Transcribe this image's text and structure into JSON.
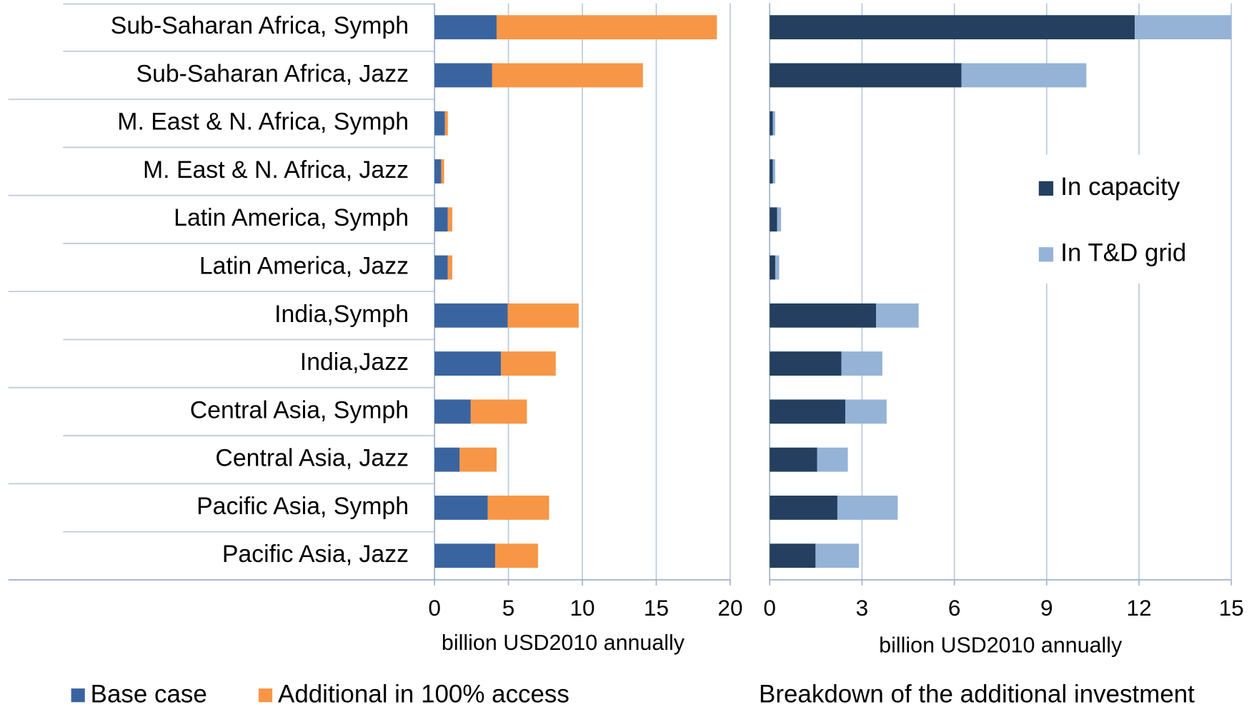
{
  "chart_data": [
    {
      "type": "bar",
      "orientation": "horizontal",
      "stacked": true,
      "categories": [
        "Sub-Saharan Africa, Symph",
        "Sub-Saharan Africa, Jazz",
        "M. East & N. Africa, Symph",
        "M. East & N. Africa, Jazz",
        "Latin America, Symph",
        "Latin America, Jazz",
        "India,Symph",
        "India,Jazz",
        "Central Asia, Symph",
        "Central Asia, Jazz",
        "Pacific Asia, Symph",
        "Pacific Asia, Jazz"
      ],
      "series": [
        {
          "name": "Base case",
          "color": "#3a64a0",
          "values": [
            4.2,
            3.9,
            0.7,
            0.45,
            0.9,
            0.9,
            4.95,
            4.5,
            2.45,
            1.7,
            3.6,
            4.1
          ]
        },
        {
          "name": "Additional in 100% access",
          "color": "#f79646",
          "values": [
            14.9,
            10.2,
            0.2,
            0.2,
            0.3,
            0.3,
            4.8,
            3.7,
            3.8,
            2.5,
            4.15,
            2.9
          ]
        }
      ],
      "xlim": [
        0,
        20
      ],
      "xticks": [
        0,
        5,
        10,
        15,
        20
      ],
      "x_label": "billion USD2010 annually",
      "grid": true,
      "legend": "bottom"
    },
    {
      "type": "bar",
      "orientation": "horizontal",
      "stacked": true,
      "caption": "Breakdown of the additional investment",
      "series": [
        {
          "name": "In capacity",
          "color": "#243f60",
          "values": [
            11.86,
            6.23,
            0.1,
            0.1,
            0.24,
            0.18,
            3.46,
            2.33,
            2.46,
            1.54,
            2.2,
            1.49
          ]
        },
        {
          "name": "In T&D grid",
          "color": "#95b3d7",
          "values": [
            3.14,
            4.06,
            0.08,
            0.08,
            0.13,
            0.13,
            1.38,
            1.33,
            1.34,
            1.0,
            1.96,
            1.41
          ]
        }
      ],
      "xlim": [
        0,
        15
      ],
      "xticks": [
        0,
        3,
        6,
        9,
        12,
        15
      ],
      "x_label": "billion USD2010 annually",
      "grid": true,
      "legend": "right"
    }
  ]
}
